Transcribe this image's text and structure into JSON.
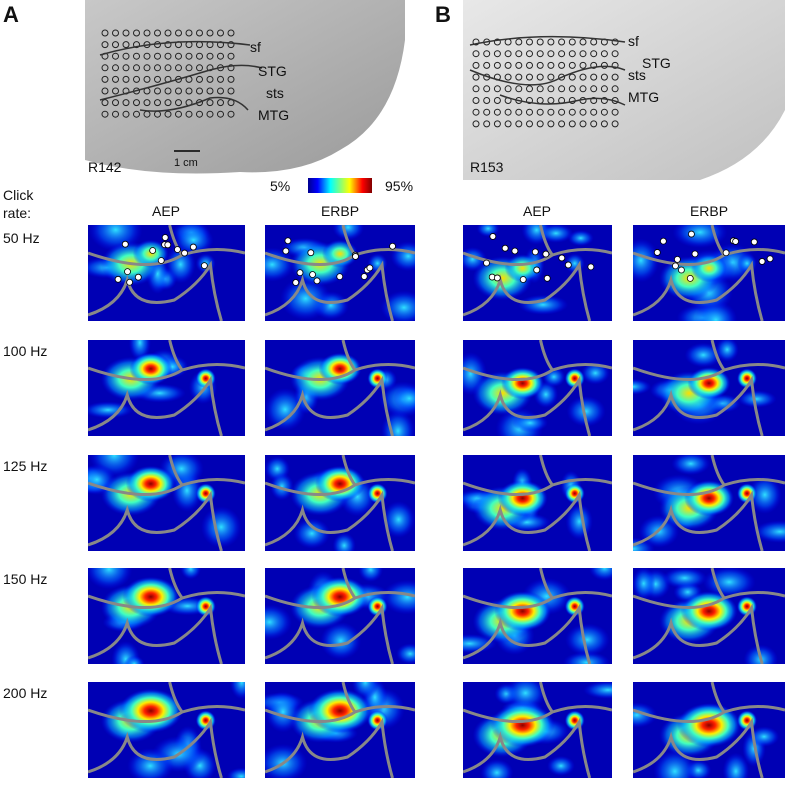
{
  "panels": [
    {
      "label": "A",
      "subject": "R142",
      "anatomy": [
        "sf",
        "STG",
        "sts",
        "MTG"
      ],
      "scale_bar": "1 cm",
      "columns": [
        "AEP",
        "ERBP"
      ]
    },
    {
      "label": "B",
      "subject": "R153",
      "anatomy": [
        "sf",
        "STG",
        "sts",
        "MTG"
      ],
      "columns": [
        "AEP",
        "ERBP"
      ]
    }
  ],
  "colorbar": {
    "min_label": "5%",
    "max_label": "95%"
  },
  "row_header": "Click rate:",
  "rows": [
    "50 Hz",
    "100 Hz",
    "125 Hz",
    "150 Hz",
    "200 Hz"
  ]
}
